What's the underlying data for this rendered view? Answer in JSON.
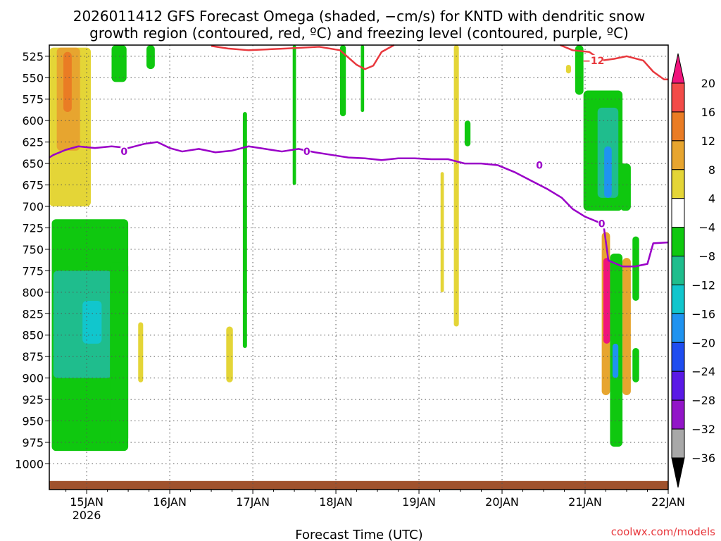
{
  "chart_data": {
    "type": "heatmap",
    "title_line1": "2026011412 GFS Forecast Omega (shaded, −cm/s) for KNTD with dendritic snow",
    "title_line2": "growth region (contoured, red, ºC) and freezing level (contoured, purple, ºC)",
    "xlabel": "Forecast Time (UTC)",
    "credit": "coolwx.com/models",
    "y_axis": {
      "unit": "hPa",
      "inverted": true,
      "range": [
        512,
        1030
      ],
      "ticks": [
        525,
        550,
        575,
        600,
        625,
        650,
        675,
        700,
        725,
        750,
        775,
        800,
        825,
        850,
        875,
        900,
        925,
        950,
        975,
        1000
      ]
    },
    "x_axis": {
      "range_days": [
        14.55,
        22.0
      ],
      "ticks": [
        {
          "day": 15,
          "label": "15JAN",
          "sublabel": "2026"
        },
        {
          "day": 16,
          "label": "16JAN",
          "sublabel": ""
        },
        {
          "day": 17,
          "label": "17JAN",
          "sublabel": ""
        },
        {
          "day": 18,
          "label": "18JAN",
          "sublabel": ""
        },
        {
          "day": 19,
          "label": "19JAN",
          "sublabel": ""
        },
        {
          "day": 20,
          "label": "20JAN",
          "sublabel": ""
        },
        {
          "day": 21,
          "label": "21JAN",
          "sublabel": ""
        },
        {
          "day": 22,
          "label": "22JAN",
          "sublabel": ""
        }
      ]
    },
    "grid": "dotted",
    "colorbar": {
      "labels": [
        "20",
        "16",
        "12",
        "8",
        "4",
        "−4",
        "−8",
        "−12",
        "−16",
        "−20",
        "−24",
        "−28",
        "−32",
        "−36"
      ],
      "colors": [
        "#f0147c",
        "#f34b48",
        "#ea7c24",
        "#e7a52f",
        "#e4d537",
        "#ffffff",
        "#0fc80f",
        "#1fbd8d",
        "#11c6cd",
        "#1f93f0",
        "#1f4df0",
        "#5a19e6",
        "#9215c8",
        "#a8a8a8",
        "#000000"
      ]
    },
    "shaded_regions": [
      {
        "color": "#e4d537",
        "t": [
          14.55,
          15.05
        ],
        "p": [
          515,
          700
        ]
      },
      {
        "color": "#e7a52f",
        "t": [
          14.64,
          14.92
        ],
        "p": [
          515,
          635
        ]
      },
      {
        "color": "#ea7c24",
        "t": [
          14.72,
          14.82
        ],
        "p": [
          520,
          590
        ]
      },
      {
        "color": "#0fc80f",
        "t": [
          14.58,
          15.5
        ],
        "p": [
          715,
          985
        ]
      },
      {
        "color": "#1fbd8d",
        "t": [
          14.6,
          15.3
        ],
        "p": [
          775,
          900
        ]
      },
      {
        "color": "#11c6cd",
        "t": [
          14.95,
          15.18
        ],
        "p": [
          810,
          860
        ]
      },
      {
        "color": "#0fc80f",
        "t": [
          15.28,
          15.5
        ],
        "p": [
          765,
          975
        ]
      },
      {
        "color": "#e4d537",
        "t": [
          15.62,
          15.68
        ],
        "p": [
          835,
          905
        ]
      },
      {
        "color": "#0fc80f",
        "t": [
          15.3,
          15.48
        ],
        "p": [
          512,
          555
        ]
      },
      {
        "color": "#0fc80f",
        "t": [
          15.72,
          15.82
        ],
        "p": [
          512,
          540
        ]
      },
      {
        "color": "#0fc80f",
        "t": [
          16.88,
          16.93
        ],
        "p": [
          590,
          865
        ]
      },
      {
        "color": "#e4d537",
        "t": [
          16.68,
          16.76
        ],
        "p": [
          840,
          905
        ]
      },
      {
        "color": "#0fc80f",
        "t": [
          17.48,
          17.52
        ],
        "p": [
          512,
          675
        ]
      },
      {
        "color": "#0fc80f",
        "t": [
          18.05,
          18.12
        ],
        "p": [
          512,
          595
        ]
      },
      {
        "color": "#0fc80f",
        "t": [
          18.3,
          18.34
        ],
        "p": [
          512,
          590
        ]
      },
      {
        "color": "#e4d537",
        "t": [
          19.42,
          19.48
        ],
        "p": [
          512,
          840
        ]
      },
      {
        "color": "#e4d537",
        "t": [
          19.26,
          19.3
        ],
        "p": [
          660,
          800
        ]
      },
      {
        "color": "#0fc80f",
        "t": [
          19.55,
          19.62
        ],
        "p": [
          600,
          630
        ]
      },
      {
        "color": "#0fc80f",
        "t": [
          20.88,
          20.98
        ],
        "p": [
          512,
          570
        ]
      },
      {
        "color": "#e4d537",
        "t": [
          20.77,
          20.83
        ],
        "p": [
          535,
          545
        ]
      },
      {
        "color": "#0fc80f",
        "t": [
          20.98,
          21.45
        ],
        "p": [
          565,
          705
        ]
      },
      {
        "color": "#1fbd8d",
        "t": [
          21.15,
          21.4
        ],
        "p": [
          585,
          690
        ]
      },
      {
        "color": "#1f93f0",
        "t": [
          21.23,
          21.32
        ],
        "p": [
          630,
          690
        ]
      },
      {
        "color": "#0fc80f",
        "t": [
          21.42,
          21.55
        ],
        "p": [
          650,
          705
        ]
      },
      {
        "color": "#e7a52f",
        "t": [
          21.2,
          21.3
        ],
        "p": [
          730,
          920
        ]
      },
      {
        "color": "#f0147c",
        "t": [
          21.22,
          21.3
        ],
        "p": [
          760,
          860
        ]
      },
      {
        "color": "#0fc80f",
        "t": [
          21.3,
          21.45
        ],
        "p": [
          755,
          980
        ]
      },
      {
        "color": "#1f93f0",
        "t": [
          21.33,
          21.4
        ],
        "p": [
          860,
          900
        ]
      },
      {
        "color": "#e7a52f",
        "t": [
          21.45,
          21.55
        ],
        "p": [
          760,
          920
        ]
      },
      {
        "color": "#0fc80f",
        "t": [
          21.57,
          21.65
        ],
        "p": [
          735,
          810
        ]
      },
      {
        "color": "#0fc80f",
        "t": [
          21.57,
          21.65
        ],
        "p": [
          865,
          905
        ]
      }
    ],
    "freezing_level_contour": {
      "color": "#9a00c8",
      "label": "0",
      "points": [
        [
          14.55,
          643
        ],
        [
          14.6,
          640
        ],
        [
          14.75,
          634
        ],
        [
          14.9,
          630
        ],
        [
          15.1,
          632
        ],
        [
          15.3,
          630
        ],
        [
          15.5,
          632
        ],
        [
          15.7,
          627
        ],
        [
          15.85,
          625
        ],
        [
          16.0,
          632
        ],
        [
          16.15,
          636
        ],
        [
          16.35,
          633
        ],
        [
          16.55,
          637
        ],
        [
          16.75,
          635
        ],
        [
          16.95,
          630
        ],
        [
          17.15,
          633
        ],
        [
          17.35,
          636
        ],
        [
          17.55,
          633
        ],
        [
          17.75,
          637
        ],
        [
          17.95,
          640
        ],
        [
          18.15,
          643
        ],
        [
          18.35,
          644
        ],
        [
          18.55,
          646
        ],
        [
          18.75,
          644
        ],
        [
          18.95,
          644
        ],
        [
          19.15,
          645
        ],
        [
          19.35,
          645
        ],
        [
          19.55,
          650
        ],
        [
          19.75,
          650
        ],
        [
          19.95,
          652
        ],
        [
          20.15,
          660
        ],
        [
          20.35,
          670
        ],
        [
          20.55,
          680
        ],
        [
          20.72,
          690
        ],
        [
          20.85,
          703
        ],
        [
          21.0,
          712
        ],
        [
          21.15,
          718
        ],
        [
          21.22,
          720
        ],
        [
          21.28,
          763
        ],
        [
          21.45,
          770
        ],
        [
          21.6,
          770
        ],
        [
          21.75,
          767
        ],
        [
          21.82,
          743
        ],
        [
          22.0,
          742
        ]
      ]
    },
    "dgz_contour": {
      "color": "#e8383d",
      "label": "−12",
      "segments": [
        [
          [
            16.5,
            513
          ],
          [
            16.7,
            516
          ],
          [
            16.95,
            518
          ],
          [
            17.4,
            516
          ],
          [
            17.8,
            514
          ],
          [
            18.05,
            518
          ],
          [
            18.25,
            535
          ],
          [
            18.35,
            540
          ],
          [
            18.45,
            536
          ],
          [
            18.55,
            520
          ],
          [
            18.7,
            512
          ]
        ],
        [
          [
            20.7,
            512
          ],
          [
            20.85,
            518
          ],
          [
            21.05,
            520
          ],
          [
            21.2,
            530
          ],
          [
            21.35,
            528
          ],
          [
            21.5,
            525
          ],
          [
            21.7,
            530
          ],
          [
            21.82,
            543
          ],
          [
            21.95,
            552
          ],
          [
            22.0,
            552
          ]
        ]
      ]
    },
    "terrain": {
      "color": "#a0522d",
      "top_hpa": 1020
    }
  }
}
